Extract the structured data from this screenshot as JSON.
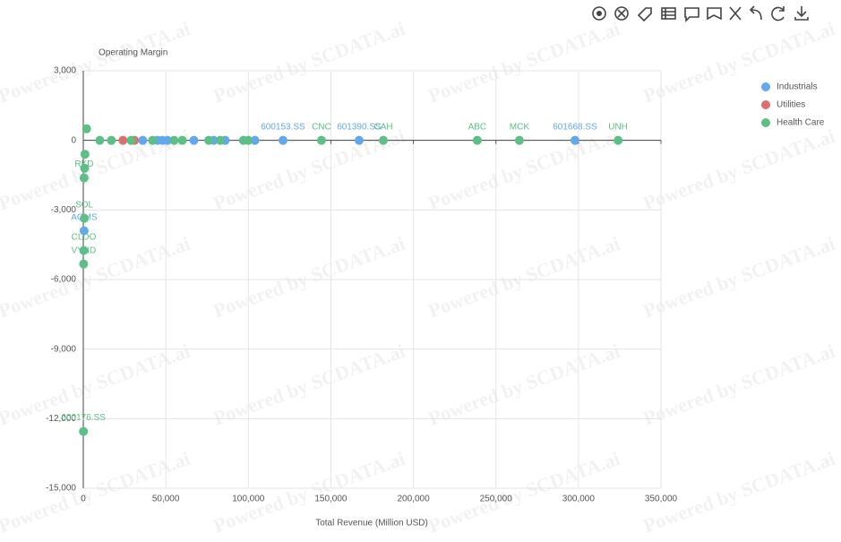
{
  "chart_data": {
    "type": "scatter",
    "y_label": "Operating Margin",
    "x_label": "Total Revenue (Million USD)",
    "watermark": "Powered by SCDATA.ai",
    "xlim": [
      0,
      350000
    ],
    "xticks": [
      0,
      {
        "value": 50000,
        "label": "50,000"
      },
      {
        "value": 100000,
        "label": "100,000"
      },
      {
        "value": 150000,
        "label": "150,000"
      },
      {
        "value": 200000,
        "label": "200,000"
      },
      {
        "value": 250000,
        "label": "250,000"
      },
      {
        "value": 300000,
        "label": "300,000"
      },
      {
        "value": 350000,
        "label": "350,000"
      }
    ],
    "ylim": [
      -15000,
      3000
    ],
    "yticks": [
      {
        "value": 3000,
        "label": "3,000"
      },
      0,
      {
        "value": -3000,
        "label": "-3,000"
      },
      {
        "value": -6000,
        "label": "-6,000"
      },
      {
        "value": -9000,
        "label": "-9,000"
      },
      {
        "value": -12000,
        "label": "-12,000"
      },
      {
        "value": -15000,
        "label": "-15,000"
      }
    ],
    "grid": true,
    "legend": "top-right",
    "series": [
      {
        "name": "Industrials",
        "color": "#62a8ef",
        "x": [
          297900,
          167100,
          121000,
          500,
          104000,
          86000,
          79000,
          67000,
          51000,
          48000,
          45000,
          36000
        ],
        "values": [
          0,
          0,
          0,
          -3900,
          0,
          0,
          0,
          0,
          0,
          0,
          0,
          0
        ],
        "labels": [
          "601668.SS",
          "601390.SS",
          "600153.SS",
          "AGMS",
          null,
          null,
          null,
          null,
          null,
          null,
          null,
          null
        ]
      },
      {
        "name": "Utilities",
        "color": "#d9726f",
        "x": [
          24000,
          31000
        ],
        "values": [
          0,
          0
        ],
        "labels": [
          null,
          null
        ]
      },
      {
        "name": "Health Care",
        "color": "#5bbf86",
        "x": [
          324000,
          264200,
          238700,
          181800,
          144300,
          100000,
          97000,
          83000,
          76000,
          60000,
          55000,
          42000,
          29000,
          17000,
          10000,
          2000,
          1000,
          800,
          600,
          300,
          200,
          500,
          100
        ],
        "values": [
          0,
          0,
          0,
          0,
          0,
          0,
          0,
          0,
          0,
          0,
          0,
          0,
          0,
          0,
          0,
          500,
          -600,
          -1200,
          -3360,
          -4750,
          -5330,
          -1620,
          -12550
        ],
        "labels": [
          "UNH",
          "MCK",
          "ABC",
          "CAH",
          "CNC",
          null,
          null,
          null,
          null,
          null,
          null,
          null,
          null,
          null,
          null,
          null,
          null,
          null,
          "SOL",
          "CLDO",
          "VYND",
          "RKD",
          "600176.SS"
        ]
      }
    ]
  }
}
